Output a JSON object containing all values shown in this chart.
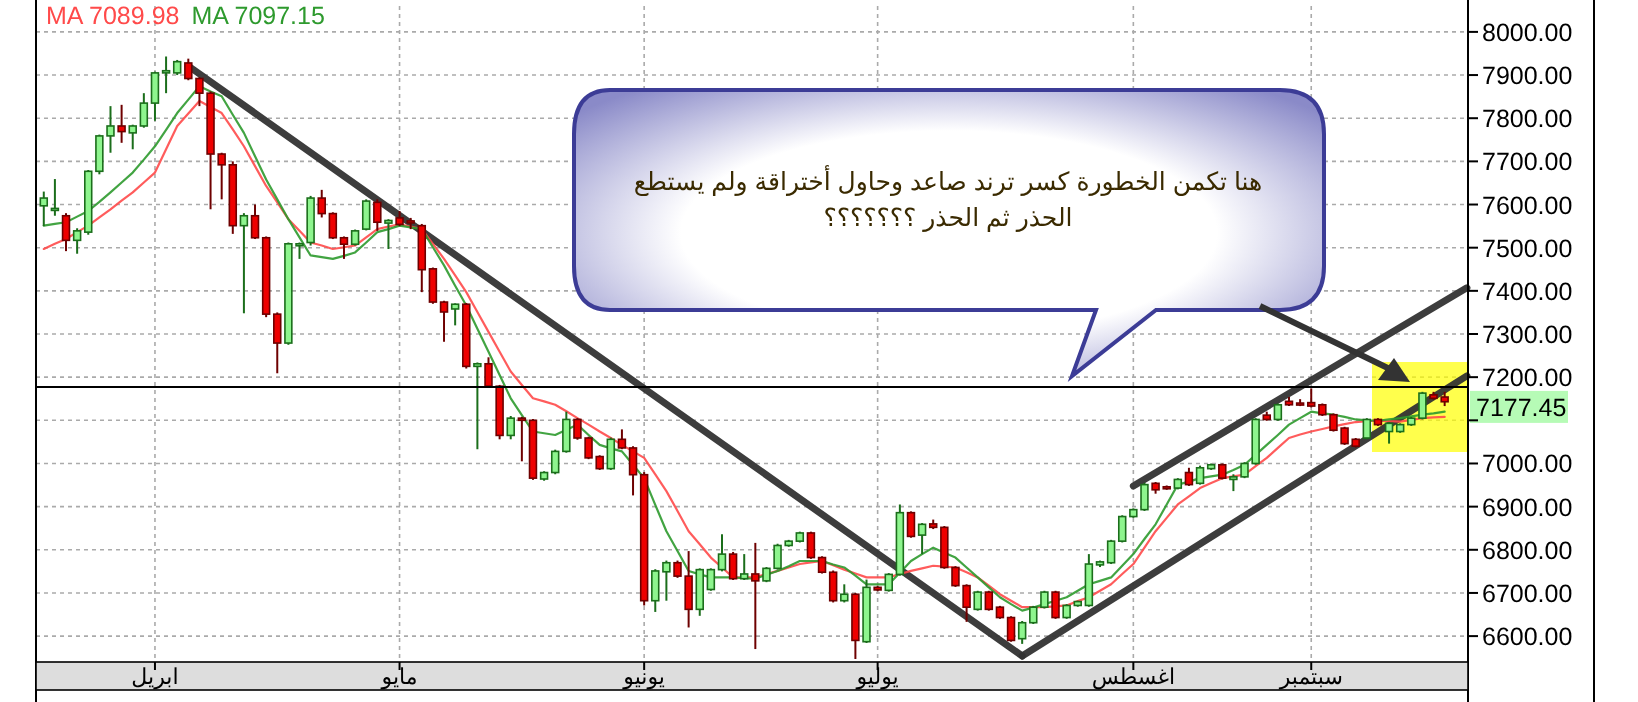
{
  "chart_data": {
    "type": "candlestick",
    "categories": [
      null,
      null,
      null,
      null,
      null,
      null,
      null,
      null,
      null,
      null,
      "ابريل",
      null,
      null,
      null,
      null,
      null,
      null,
      null,
      null,
      null,
      null,
      null,
      null,
      null,
      null,
      null,
      null,
      null,
      null,
      null,
      null,
      null,
      "مايو",
      null,
      null,
      null,
      null,
      null,
      null,
      null,
      null,
      null,
      null,
      null,
      null,
      null,
      null,
      null,
      null,
      null,
      null,
      null,
      null,
      null,
      "يونيو",
      null,
      null,
      null,
      null,
      null,
      null,
      null,
      null,
      null,
      null,
      null,
      null,
      null,
      null,
      null,
      null,
      null,
      null,
      null,
      null,
      "يوليو",
      null,
      null,
      null,
      null,
      null,
      null,
      null,
      null,
      null,
      null,
      null,
      null,
      null,
      null,
      null,
      null,
      null,
      null,
      null,
      null,
      null,
      null,
      "اغسطس",
      null,
      null,
      null,
      null,
      null,
      null,
      null,
      null,
      null,
      null,
      null,
      null,
      null,
      null,
      null,
      "سبتمبر",
      null,
      null,
      null,
      null,
      null,
      null,
      null,
      null,
      null,
      null,
      null,
      null,
      null,
      null
    ],
    "ohlc": [
      [
        7597,
        7630,
        7550,
        7615
      ],
      [
        7590,
        7659,
        7574,
        7591
      ],
      [
        7574,
        7580,
        7492,
        7517
      ],
      [
        7517,
        7545,
        7486,
        7539
      ],
      [
        7536,
        7680,
        7530,
        7677
      ],
      [
        7677,
        7762,
        7670,
        7759
      ],
      [
        7759,
        7828,
        7720,
        7782
      ],
      [
        7782,
        7831,
        7743,
        7769
      ],
      [
        7766,
        7785,
        7728,
        7782
      ],
      [
        7782,
        7858,
        7778,
        7835
      ],
      [
        7835,
        7908,
        7794,
        7905
      ],
      [
        7905,
        7943,
        7858,
        7910
      ],
      [
        7905,
        7935,
        7900,
        7931
      ],
      [
        7928,
        7938,
        7888,
        7892
      ],
      [
        7892,
        7895,
        7828,
        7858
      ],
      [
        7858,
        7862,
        7589,
        7717
      ],
      [
        7717,
        7720,
        7612,
        7692
      ],
      [
        7692,
        7700,
        7532,
        7551
      ],
      [
        7551,
        7580,
        7348,
        7574
      ],
      [
        7574,
        7600,
        7520,
        7523
      ],
      [
        7523,
        7526,
        7339,
        7346
      ],
      [
        7346,
        7350,
        7209,
        7279
      ],
      [
        7279,
        7512,
        7275,
        7509
      ],
      [
        7505,
        7512,
        7474,
        7509
      ],
      [
        7512,
        7620,
        7505,
        7615
      ],
      [
        7615,
        7634,
        7570,
        7579
      ],
      [
        7579,
        7582,
        7520,
        7523
      ],
      [
        7523,
        7526,
        7474,
        7508
      ],
      [
        7508,
        7542,
        7505,
        7539
      ],
      [
        7543,
        7612,
        7540,
        7608
      ],
      [
        7605,
        7612,
        7539,
        7559
      ],
      [
        7557,
        7566,
        7497,
        7563
      ],
      [
        7569,
        7585,
        7550,
        7554
      ],
      [
        7562,
        7569,
        7543,
        7558
      ],
      [
        7551,
        7555,
        7397,
        7449
      ],
      [
        7451,
        7454,
        7370,
        7374
      ],
      [
        7374,
        7377,
        7282,
        7351
      ],
      [
        7358,
        7371,
        7320,
        7369
      ],
      [
        7369,
        7372,
        7220,
        7225
      ],
      [
        7225,
        7234,
        7033,
        7231
      ],
      [
        7231,
        7246,
        7175,
        7179
      ],
      [
        7179,
        7182,
        7056,
        7065
      ],
      [
        7065,
        7110,
        7056,
        7105
      ],
      [
        7105,
        7108,
        7005,
        7100
      ],
      [
        7100,
        7103,
        6962,
        6966
      ],
      [
        6964,
        6982,
        6960,
        6979
      ],
      [
        6979,
        7032,
        6975,
        7028
      ],
      [
        7028,
        7120,
        7025,
        7102
      ],
      [
        7102,
        7105,
        7055,
        7059
      ],
      [
        7059,
        7062,
        7010,
        7013
      ],
      [
        7016,
        7019,
        6985,
        6988
      ],
      [
        6988,
        7060,
        6985,
        7056
      ],
      [
        7056,
        7079,
        7033,
        7036
      ],
      [
        7036,
        7040,
        6926,
        6974
      ],
      [
        6974,
        6980,
        6671,
        6682
      ],
      [
        6682,
        6755,
        6656,
        6751
      ],
      [
        6749,
        6775,
        6682,
        6770
      ],
      [
        6770,
        6775,
        6735,
        6739
      ],
      [
        6739,
        6797,
        6620,
        6662
      ],
      [
        6662,
        6757,
        6647,
        6754
      ],
      [
        6708,
        6757,
        6705,
        6754
      ],
      [
        6754,
        6836,
        6750,
        6790
      ],
      [
        6790,
        6795,
        6730,
        6733
      ],
      [
        6733,
        6790,
        6730,
        6744
      ],
      [
        6744,
        6816,
        6570,
        6728
      ],
      [
        6728,
        6760,
        6725,
        6757
      ],
      [
        6757,
        6814,
        6754,
        6810
      ],
      [
        6810,
        6823,
        6807,
        6820
      ],
      [
        6820,
        6842,
        6817,
        6839
      ],
      [
        6839,
        6842,
        6779,
        6782
      ],
      [
        6782,
        6785,
        6745,
        6748
      ],
      [
        6748,
        6752,
        6678,
        6682
      ],
      [
        6682,
        6720,
        6678,
        6697
      ],
      [
        6697,
        6700,
        6547,
        6590
      ],
      [
        6587,
        6731,
        6584,
        6713
      ],
      [
        6713,
        6716,
        6704,
        6707
      ],
      [
        6706,
        6746,
        6703,
        6743
      ],
      [
        6743,
        6905,
        6740,
        6886
      ],
      [
        6886,
        6889,
        6828,
        6831
      ],
      [
        6834,
        6862,
        6790,
        6859
      ],
      [
        6860,
        6870,
        6848,
        6852
      ],
      [
        6852,
        6855,
        6756,
        6759
      ],
      [
        6759,
        6762,
        6714,
        6717
      ],
      [
        6717,
        6720,
        6633,
        6667
      ],
      [
        6662,
        6705,
        6659,
        6702
      ],
      [
        6702,
        6705,
        6659,
        6662
      ],
      [
        6667,
        6670,
        6640,
        6643
      ],
      [
        6643,
        6646,
        6587,
        6590
      ],
      [
        6594,
        6635,
        6582,
        6631
      ],
      [
        6631,
        6670,
        6628,
        6667
      ],
      [
        6667,
        6705,
        6664,
        6702
      ],
      [
        6702,
        6705,
        6640,
        6643
      ],
      [
        6643,
        6674,
        6640,
        6671
      ],
      [
        6671,
        6682,
        6668,
        6680
      ],
      [
        6671,
        6790,
        6668,
        6767
      ],
      [
        6765,
        6775,
        6760,
        6772
      ],
      [
        6770,
        6823,
        6767,
        6820
      ],
      [
        6820,
        6880,
        6817,
        6877
      ],
      [
        6877,
        6896,
        6874,
        6893
      ],
      [
        6893,
        6955,
        6890,
        6951
      ],
      [
        6954,
        6957,
        6930,
        6939
      ],
      [
        6946,
        6949,
        6939,
        6942
      ],
      [
        6943,
        6966,
        6940,
        6963
      ],
      [
        6979,
        6990,
        6948,
        6951
      ],
      [
        6954,
        6995,
        6951,
        6990
      ],
      [
        6988,
        7000,
        6985,
        6997
      ],
      [
        6997,
        7000,
        6963,
        6966
      ],
      [
        6963,
        6975,
        6936,
        6969
      ],
      [
        6969,
        7003,
        6966,
        7000
      ],
      [
        7000,
        7105,
        6997,
        7102
      ],
      [
        7112,
        7120,
        7099,
        7102
      ],
      [
        7102,
        7139,
        7099,
        7136
      ],
      [
        7144,
        7154,
        7133,
        7136
      ],
      [
        7140,
        7149,
        7133,
        7136
      ],
      [
        7141,
        7174,
        7130,
        7133
      ],
      [
        7136,
        7139,
        7110,
        7113
      ],
      [
        7113,
        7116,
        7074,
        7077
      ],
      [
        7082,
        7085,
        7043,
        7046
      ],
      [
        7056,
        7059,
        7037,
        7040
      ],
      [
        7059,
        7105,
        7056,
        7102
      ],
      [
        7102,
        7105,
        7087,
        7090
      ],
      [
        7074,
        7096,
        7046,
        7093
      ],
      [
        7074,
        7093,
        7071,
        7090
      ],
      [
        7090,
        7108,
        7087,
        7105
      ],
      [
        7105,
        7166,
        7102,
        7163
      ],
      [
        7159,
        7166,
        7148,
        7151
      ],
      [
        7154,
        7166,
        7133,
        7143
      ],
      null,
      null
    ],
    "series": [
      {
        "type": "line",
        "name": "MA 7089.98",
        "color": "#ff4a4a",
        "values": [
          7497,
          7509,
          7520,
          7536,
          7551,
          7570,
          7589,
          7609,
          7628,
          7651,
          7674,
          7728,
          7782,
          7811,
          7840,
          7826,
          7812,
          7774,
          7735,
          7689,
          7643,
          7605,
          7566,
          7539,
          7512,
          7505,
          7497,
          7501,
          7505,
          7524,
          7543,
          7549,
          7554,
          7549,
          7543,
          7509,
          7474,
          7436,
          7397,
          7351,
          7305,
          7259,
          7213,
          7182,
          7151,
          7144,
          7136,
          7121,
          7105,
          7090,
          7074,
          7059,
          7043,
          7028,
          7013,
          6975,
          6936,
          6890,
          6843,
          6813,
          6782,
          6759,
          6736,
          6736,
          6736,
          6744,
          6751,
          6759,
          6767,
          6771,
          6774,
          6764,
          6754,
          6745,
          6736,
          6736,
          6736,
          6744,
          6751,
          6757,
          6763,
          6761,
          6759,
          6748,
          6736,
          6717,
          6697,
          6682,
          6667,
          6667,
          6667,
          6669,
          6671,
          6681,
          6690,
          6705,
          6720,
          6744,
          6767,
          6805,
          6843,
          6874,
          6905,
          6924,
          6943,
          6955,
          6966,
          6970,
          6974,
          6994,
          7013,
          7036,
          7059,
          7067,
          7074,
          7080,
          7086,
          7091,
          7096,
          7098,
          7099,
          7098,
          7097,
          7101,
          7105,
          7107,
          7108,
          null,
          null
        ]
      },
      {
        "type": "line",
        "name": "MA 7097.15",
        "color": "#2e9a2e",
        "values": [
          7551,
          7555,
          7559,
          7572,
          7585,
          7606,
          7628,
          7651,
          7674,
          7704,
          7735,
          7773,
          7812,
          7843,
          7874,
          7862,
          7851,
          7808,
          7766,
          7712,
          7658,
          7612,
          7566,
          7524,
          7482,
          7478,
          7474,
          7481,
          7489,
          7512,
          7536,
          7543,
          7551,
          7547,
          7543,
          7501,
          7459,
          7412,
          7366,
          7312,
          7259,
          7205,
          7151,
          7112,
          7074,
          7070,
          7066,
          7078,
          7090,
          7066,
          7043,
          7035,
          7028,
          6997,
          6966,
          6904,
          6843,
          6797,
          6751,
          6743,
          6736,
          6736,
          6736,
          6734,
          6733,
          6742,
          6751,
          6762,
          6774,
          6774,
          6774,
          6766,
          6759,
          6740,
          6720,
          6720,
          6720,
          6747,
          6774,
          6790,
          6805,
          6793,
          6782,
          6759,
          6736,
          6713,
          6690,
          6674,
          6659,
          6666,
          6674,
          6682,
          6690,
          6705,
          6720,
          6728,
          6736,
          6763,
          6790,
          6825,
          6859,
          6905,
          6951,
          6958,
          6966,
          6970,
          6974,
          6985,
          6997,
          7020,
          7043,
          7066,
          7090,
          7105,
          7120,
          7116,
          7113,
          7108,
          7102,
          7100,
          7099,
          7102,
          7105,
          7109,
          7113,
          7116,
          7120,
          null,
          null
        ]
      },
      {
        "type": "line",
        "color": "#333333",
        "values": [
          null,
          null,
          null,
          null,
          null,
          null,
          null,
          null,
          null,
          null,
          null,
          null,
          null,
          7921,
          null,
          null,
          null,
          null,
          null,
          null,
          null,
          null,
          null,
          null,
          null,
          null,
          null,
          null,
          null,
          null,
          null,
          null,
          null,
          null,
          null,
          null,
          null,
          null,
          null,
          null,
          null,
          null,
          null,
          null,
          null,
          null,
          null,
          null,
          null,
          null,
          null,
          null,
          null,
          null,
          null,
          null,
          null,
          null,
          null,
          null,
          null,
          null,
          null,
          null,
          null,
          null,
          null,
          null,
          null,
          null,
          null,
          null,
          null,
          null,
          null,
          null,
          null,
          null,
          null,
          null,
          null,
          null,
          null,
          null,
          null,
          null,
          null,
          null,
          6554,
          null,
          null,
          null,
          null,
          null,
          null,
          null,
          null,
          null,
          null,
          null,
          null,
          null,
          null,
          null,
          null,
          null,
          null,
          null,
          null,
          null,
          null,
          null,
          null,
          null,
          null,
          null,
          null,
          null,
          null,
          null,
          null,
          null,
          null,
          null,
          null,
          null,
          null,
          null,
          null
        ]
      },
      {
        "type": "line",
        "color": "#333333",
        "values": [
          null,
          null,
          null,
          null,
          null,
          null,
          null,
          null,
          null,
          null,
          null,
          null,
          null,
          null,
          null,
          null,
          null,
          null,
          null,
          null,
          null,
          null,
          null,
          null,
          null,
          null,
          null,
          null,
          null,
          null,
          null,
          null,
          null,
          null,
          null,
          null,
          null,
          null,
          null,
          null,
          null,
          null,
          null,
          null,
          null,
          null,
          null,
          null,
          null,
          null,
          null,
          null,
          null,
          null,
          null,
          null,
          null,
          null,
          null,
          null,
          null,
          null,
          null,
          null,
          null,
          null,
          null,
          null,
          null,
          null,
          null,
          null,
          null,
          null,
          null,
          null,
          null,
          null,
          null,
          null,
          null,
          null,
          null,
          null,
          null,
          null,
          null,
          null,
          6554,
          null,
          null,
          null,
          null,
          null,
          null,
          null,
          null,
          null,
          null,
          null,
          null,
          null,
          null,
          null,
          null,
          null,
          null,
          null,
          null,
          null,
          null,
          null,
          null,
          null,
          null,
          null,
          null,
          null,
          null,
          null,
          null,
          null,
          null,
          null,
          null,
          null,
          null,
          null,
          7203
        ]
      },
      {
        "type": "line",
        "color": "#333333",
        "values": [
          null,
          null,
          null,
          null,
          null,
          null,
          null,
          null,
          null,
          null,
          null,
          null,
          null,
          null,
          null,
          null,
          null,
          null,
          null,
          null,
          null,
          null,
          null,
          null,
          null,
          null,
          null,
          null,
          null,
          null,
          null,
          null,
          null,
          null,
          null,
          null,
          null,
          null,
          null,
          null,
          null,
          null,
          null,
          null,
          null,
          null,
          null,
          null,
          null,
          null,
          null,
          null,
          null,
          null,
          null,
          null,
          null,
          null,
          null,
          null,
          null,
          null,
          null,
          null,
          null,
          null,
          null,
          null,
          null,
          null,
          null,
          null,
          null,
          null,
          null,
          null,
          null,
          null,
          null,
          null,
          null,
          null,
          null,
          null,
          null,
          null,
          null,
          null,
          null,
          null,
          null,
          null,
          null,
          null,
          null,
          null,
          null,
          null,
          6948,
          null,
          null,
          null,
          null,
          null,
          null,
          null,
          null,
          null,
          null,
          null,
          null,
          null,
          null,
          null,
          null,
          null,
          null,
          null,
          null,
          null,
          null,
          null,
          null,
          null,
          null,
          null,
          null,
          null,
          7407
        ]
      }
    ],
    "ylim": [
      6540,
      8060
    ],
    "yticks": [
      {
        "value": 6600,
        "label": "6600.00"
      },
      {
        "value": 6700,
        "label": "6700.00"
      },
      {
        "value": 6800,
        "label": "6800.00"
      },
      {
        "value": 6900,
        "label": "6900.00"
      },
      {
        "value": 7000,
        "label": "7000.00"
      },
      {
        "value": 7100,
        "label": null
      },
      {
        "value": 7200,
        "label": "7200.00"
      },
      {
        "value": 7300,
        "label": "7300.00"
      },
      {
        "value": 7400,
        "label": "7400.00"
      },
      {
        "value": 7500,
        "label": "7500.00"
      },
      {
        "value": 7600,
        "label": "7600.00"
      },
      {
        "value": 7700,
        "label": "7700.00"
      },
      {
        "value": 7800,
        "label": "7800.00"
      },
      {
        "value": 7900,
        "label": "7900.00"
      },
      {
        "value": 8000,
        "label": "8000.00"
      }
    ],
    "ref_lines": [
      {
        "axis": "y",
        "value": 7177.45,
        "label": "7177.45",
        "color": "#000000"
      }
    ],
    "annotations": [
      "هنا تكمن الخطورة كسر ترند صاعد وحاول أختراقة ولم يستطع\nالحذر ثم الحذر ؟؟؟؟؟؟؟"
    ],
    "grid": true,
    "legend": "top left"
  }
}
